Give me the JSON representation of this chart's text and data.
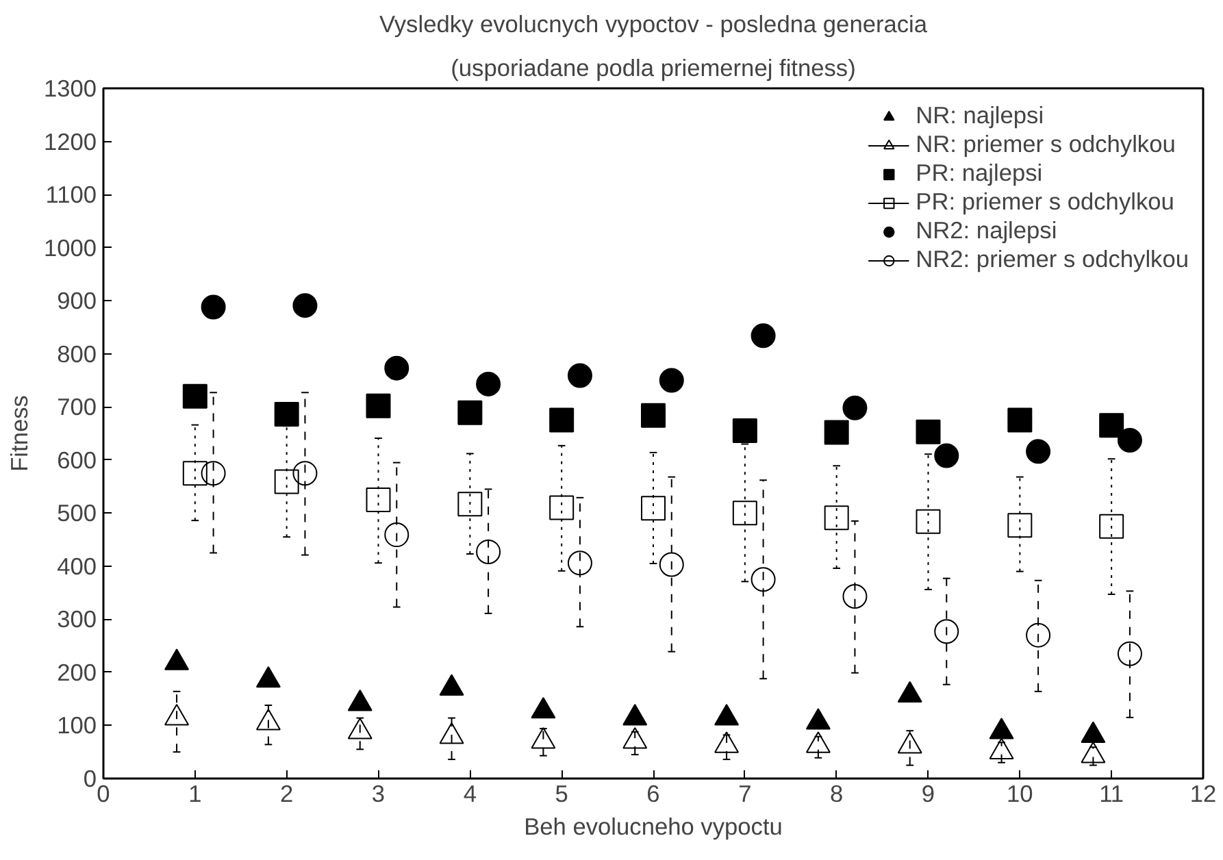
{
  "chart_data": {
    "type": "scatter",
    "title": "Vysledky evolucnych vypoctov - posledna generacia",
    "subtitle": "(usporiadane podla priemernej fitness)",
    "xlabel": "Beh evolucneho vypoctu",
    "ylabel": "Fitness",
    "xlim": [
      0,
      12
    ],
    "ylim": [
      0,
      1300
    ],
    "xticks": [
      0,
      1,
      2,
      3,
      4,
      5,
      6,
      7,
      8,
      9,
      10,
      11,
      12
    ],
    "yticks": [
      0,
      100,
      200,
      300,
      400,
      500,
      600,
      700,
      800,
      900,
      1000,
      1100,
      1200,
      1300
    ],
    "legend": "top right",
    "series": [
      {
        "name": "NR: najlepsi",
        "color": "#000000",
        "marker": "triangle",
        "x": [
          0.8,
          1.8,
          2.8,
          3.8,
          4.8,
          5.8,
          6.8,
          7.8,
          8.8,
          9.8,
          10.8
        ],
        "values": [
          218,
          185,
          141,
          170,
          127,
          114,
          114,
          106,
          157,
          88,
          81
        ]
      },
      {
        "name": "NR: priemer s odchylkou",
        "color": "#000000",
        "marker": "triangle",
        "line_style": "dashed",
        "x": [
          0.8,
          1.8,
          2.8,
          3.8,
          4.8,
          5.8,
          6.8,
          7.8,
          8.8,
          9.8,
          10.8
        ],
        "values": [
          114,
          105,
          88,
          79,
          70,
          70,
          62,
          62,
          61,
          50,
          43
        ],
        "errors": [
          [
            50,
            164
          ],
          [
            64,
            138
          ],
          [
            55,
            114
          ],
          [
            36,
            114
          ],
          [
            43,
            94
          ],
          [
            45,
            88
          ],
          [
            36,
            82
          ],
          [
            39,
            79
          ],
          [
            25,
            90
          ],
          [
            30,
            68
          ],
          [
            25,
            59
          ]
        ]
      },
      {
        "name": "PR: najlepsi",
        "color": "#000000",
        "marker": "square",
        "x": [
          1,
          2,
          3,
          4,
          5,
          6,
          7,
          8,
          9,
          10,
          11
        ],
        "values": [
          720,
          686,
          702,
          689,
          675,
          684,
          655,
          652,
          653,
          675,
          665
        ]
      },
      {
        "name": "PR: priemer s odchylkou",
        "color": "#000000",
        "marker": "square",
        "line_style": "dotted",
        "x": [
          1,
          2,
          3,
          4,
          5,
          6,
          7,
          8,
          9,
          10,
          11
        ],
        "values": [
          575,
          559,
          525,
          517,
          510,
          509,
          500,
          491,
          484,
          477,
          475
        ],
        "errors": [
          [
            486,
            666
          ],
          [
            455,
            664
          ],
          [
            406,
            641
          ],
          [
            423,
            612
          ],
          [
            391,
            627
          ],
          [
            405,
            614
          ],
          [
            371,
            630
          ],
          [
            396,
            589
          ],
          [
            356,
            611
          ],
          [
            390,
            568
          ],
          [
            347,
            602
          ]
        ]
      },
      {
        "name": "NR2: najlepsi",
        "color": "#000000",
        "marker": "circle",
        "x": [
          1.2,
          2.2,
          3.2,
          4.2,
          5.2,
          6.2,
          7.2,
          8.2,
          9.2,
          10.2,
          11.2
        ],
        "values": [
          888,
          891,
          773,
          743,
          759,
          750,
          834,
          698,
          608,
          616,
          637
        ]
      },
      {
        "name": "NR2: priemer s odchylkou",
        "color": "#000000",
        "marker": "circle",
        "line_style": "dashed",
        "x": [
          1.2,
          2.2,
          3.2,
          4.2,
          5.2,
          6.2,
          7.2,
          8.2,
          9.2,
          10.2,
          11.2
        ],
        "values": [
          575,
          575,
          459,
          427,
          406,
          403,
          375,
          343,
          277,
          270,
          235
        ],
        "errors": [
          [
            425,
            727
          ],
          [
            421,
            727
          ],
          [
            323,
            595
          ],
          [
            311,
            545
          ],
          [
            286,
            529
          ],
          [
            239,
            568
          ],
          [
            188,
            562
          ],
          [
            199,
            485
          ],
          [
            177,
            377
          ],
          [
            164,
            373
          ],
          [
            115,
            353
          ]
        ]
      }
    ]
  }
}
